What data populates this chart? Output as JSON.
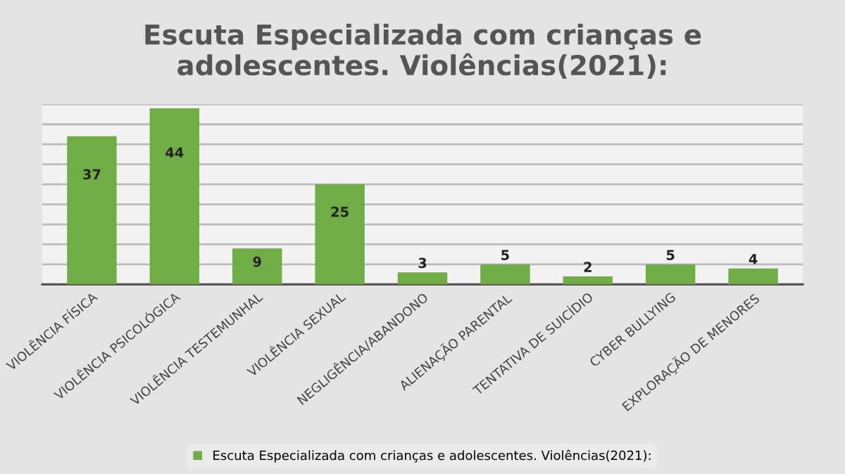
{
  "chart_data": {
    "type": "bar",
    "title": "Escuta Especializada com crianças e adolescentes. Violências(2021):",
    "categories": [
      "VIOLÊNCIA FÍSICA",
      "VIOLÊNCIA PSICOLÓGICA",
      "VIOLÊNCIA TESTEMUNHAL",
      "VIOLÊNCIA SEXUAL",
      "NEGLIGÊNCIA/ABANDONO",
      "ALIENAÇÃO PARENTAL",
      "TENTATIVA DE SUICÍDIO",
      "CYBER BULLYING",
      "EXPLORAÇÃO DE MENORES"
    ],
    "series": [
      {
        "name": "Escuta Especializada com crianças e adolescentes. Violências(2021):",
        "color": "#70ad47",
        "values": [
          37,
          44,
          9,
          25,
          3,
          5,
          2,
          5,
          4
        ]
      }
    ],
    "ylim": [
      0,
      45
    ],
    "yticks": [
      {
        "value": 0,
        "label": null
      },
      {
        "value": 5,
        "label": null
      },
      {
        "value": 10,
        "label": null
      },
      {
        "value": 15,
        "label": null
      },
      {
        "value": 20,
        "label": null
      },
      {
        "value": 25,
        "label": null
      },
      {
        "value": 30,
        "label": null
      },
      {
        "value": 35,
        "label": null
      },
      {
        "value": 40,
        "label": null
      },
      {
        "value": 45,
        "label": null
      }
    ],
    "tick_labels": "x",
    "grid": "y",
    "legend": "bottom",
    "data_labels": true
  }
}
